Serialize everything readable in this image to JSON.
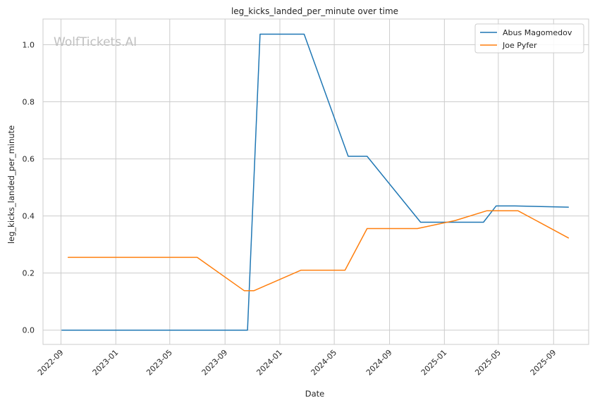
{
  "watermark": "WolfTickets.AI",
  "chart_data": {
    "type": "line",
    "title": "leg_kicks_landed_per_minute over time",
    "xlabel": "Date",
    "ylabel": "leg_kicks_landed_per_minute",
    "x_ticks": [
      "2022-09",
      "2023-01",
      "2023-05",
      "2023-09",
      "2024-01",
      "2024-05",
      "2024-09",
      "2025-01",
      "2025-05",
      "2025-09"
    ],
    "y_ticks": [
      0.0,
      0.2,
      0.4,
      0.6,
      0.8,
      1.0
    ],
    "y_tick_labels": [
      "0.0",
      "0.2",
      "0.4",
      "0.6",
      "0.8",
      "1.0"
    ],
    "xlim": [
      "2022-07-23",
      "2025-11-18"
    ],
    "ylim": [
      -0.05,
      1.09
    ],
    "grid": true,
    "legend_position": "top-right",
    "series": [
      {
        "name": "Abus Magomedov",
        "color": "#1f77b4",
        "points": [
          [
            "2022-09-03",
            0.0
          ],
          [
            "2023-10-21",
            0.0
          ],
          [
            "2023-11-18",
            1.037
          ],
          [
            "2024-02-24",
            1.037
          ],
          [
            "2024-06-01",
            0.609
          ],
          [
            "2024-07-13",
            0.609
          ],
          [
            "2024-11-09",
            0.378
          ],
          [
            "2025-03-29",
            0.378
          ],
          [
            "2025-04-26",
            0.435
          ],
          [
            "2025-06-07",
            0.435
          ],
          [
            "2025-10-04",
            0.431
          ]
        ]
      },
      {
        "name": "Joe Pyfer",
        "color": "#ff7f0e",
        "points": [
          [
            "2022-09-17",
            0.255
          ],
          [
            "2023-07-01",
            0.255
          ],
          [
            "2023-10-14",
            0.138
          ],
          [
            "2023-11-04",
            0.138
          ],
          [
            "2024-02-17",
            0.21
          ],
          [
            "2024-05-25",
            0.21
          ],
          [
            "2024-07-13",
            0.356
          ],
          [
            "2024-11-02",
            0.356
          ],
          [
            "2025-01-25",
            0.384
          ],
          [
            "2025-04-05",
            0.418
          ],
          [
            "2025-06-14",
            0.418
          ],
          [
            "2025-10-04",
            0.323
          ]
        ]
      }
    ]
  }
}
